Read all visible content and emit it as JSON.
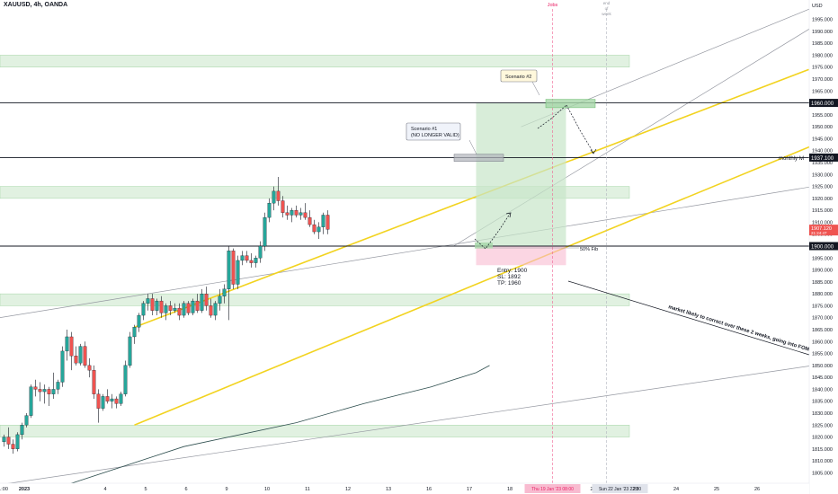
{
  "header": {
    "symbol_info": "XAUUSD, 4h, OANDA",
    "currency": "USD"
  },
  "chart_data": {
    "type": "candlestick",
    "y_axis": {
      "range": [
        1800,
        2000
      ],
      "ticks": [
        1805,
        1810,
        1815,
        1820,
        1825,
        1830,
        1835,
        1840,
        1845,
        1850,
        1855,
        1860,
        1865,
        1870,
        1875,
        1880,
        1885,
        1890,
        1895,
        1900,
        1905,
        1910,
        1915,
        1920,
        1925,
        1930,
        1935,
        1940,
        1945,
        1950,
        1955,
        1960,
        1965,
        1970,
        1975,
        1980,
        1985,
        1990,
        1995
      ],
      "tick_labels": [
        "1805.000",
        "1810.000",
        "1815.000",
        "1820.000",
        "1825.000",
        "1830.000",
        "1835.000",
        "1840.000",
        "1845.000",
        "1850.000",
        "1855.000",
        "1860.000",
        "1865.000",
        "1870.000",
        "1875.000",
        "1880.000",
        "1885.000",
        "1890.000",
        "1895.000",
        "1900.000",
        "1905.000",
        "1910.000",
        "1915.000",
        "1920.000",
        "1925.000",
        "1930.000",
        "1935.000",
        "1940.000",
        "1945.000",
        "1950.000",
        "1955.000",
        "1960.000",
        "1965.000",
        "1970.000",
        "1975.000",
        "1980.000",
        "1985.000",
        "1990.000",
        "1995.000"
      ]
    },
    "x_axis": {
      "labels": [
        "21:00",
        "2023",
        "4",
        "5",
        "6",
        "9",
        "10",
        "11",
        "12",
        "13",
        "16",
        "17",
        "18",
        "Thu 19 Jan '23 08:00",
        "20",
        "Sun 22 Jan '23 22:00",
        "23",
        "24",
        "25",
        "26"
      ],
      "label_index": [
        -0.5,
        4.5,
        22.5,
        31.5,
        40.5,
        49.5,
        58.5,
        67.5,
        76.5,
        85.5,
        94.5,
        103.5,
        112.5,
        122,
        131,
        137,
        140.5,
        149.5,
        158.5,
        167.5
      ],
      "highlighted_labels": [
        "Thu 19 Jan '23 08:00",
        "Sun 22 Jan '23 22:00"
      ]
    },
    "candles": [
      [
        1818,
        1821,
        1816,
        1820
      ],
      [
        1820,
        1824,
        1815,
        1817
      ],
      [
        1817,
        1819,
        1813,
        1815
      ],
      [
        1815,
        1822,
        1814,
        1821
      ],
      [
        1821,
        1826,
        1819,
        1825
      ],
      [
        1825,
        1830,
        1824,
        1829
      ],
      [
        1829,
        1842,
        1828,
        1841
      ],
      [
        1841,
        1844,
        1837,
        1840
      ],
      [
        1840,
        1843,
        1835,
        1839
      ],
      [
        1839,
        1842,
        1834,
        1840
      ],
      [
        1840,
        1841,
        1833,
        1838
      ],
      [
        1838,
        1847,
        1836,
        1840
      ],
      [
        1840,
        1844,
        1838,
        1843
      ],
      [
        1843,
        1858,
        1841,
        1856
      ],
      [
        1856,
        1865,
        1852,
        1862
      ],
      [
        1862,
        1864,
        1848,
        1854
      ],
      [
        1854,
        1858,
        1850,
        1851
      ],
      [
        1851,
        1859,
        1850,
        1858
      ],
      [
        1858,
        1860,
        1849,
        1850
      ],
      [
        1850,
        1853,
        1845,
        1848
      ],
      [
        1848,
        1850,
        1836,
        1838
      ],
      [
        1838,
        1840,
        1826,
        1832
      ],
      [
        1832,
        1838,
        1831,
        1837
      ],
      [
        1837,
        1840,
        1834,
        1835
      ],
      [
        1835,
        1838,
        1832,
        1836
      ],
      [
        1836,
        1837,
        1832,
        1834
      ],
      [
        1834,
        1839,
        1833,
        1838
      ],
      [
        1838,
        1852,
        1837,
        1850
      ],
      [
        1850,
        1864,
        1849,
        1862
      ],
      [
        1862,
        1867,
        1859,
        1866
      ],
      [
        1866,
        1872,
        1864,
        1871
      ],
      [
        1871,
        1877,
        1869,
        1876
      ],
      [
        1876,
        1880,
        1873,
        1878
      ],
      [
        1878,
        1880,
        1871,
        1873
      ],
      [
        1873,
        1878,
        1871,
        1877
      ],
      [
        1877,
        1879,
        1870,
        1872
      ],
      [
        1872,
        1876,
        1869,
        1875
      ],
      [
        1875,
        1877,
        1871,
        1873
      ],
      [
        1873,
        1876,
        1872,
        1874
      ],
      [
        1874,
        1876,
        1869,
        1871
      ],
      [
        1871,
        1877,
        1870,
        1876
      ],
      [
        1876,
        1877,
        1871,
        1872
      ],
      [
        1872,
        1878,
        1871,
        1877
      ],
      [
        1877,
        1880,
        1872,
        1873
      ],
      [
        1873,
        1882,
        1872,
        1880
      ],
      [
        1880,
        1883,
        1873,
        1875
      ],
      [
        1875,
        1878,
        1870,
        1871
      ],
      [
        1871,
        1877,
        1869,
        1876
      ],
      [
        1876,
        1882,
        1873,
        1879
      ],
      [
        1879,
        1884,
        1876,
        1882
      ],
      [
        1882,
        1900,
        1869,
        1898
      ],
      [
        1898,
        1899,
        1882,
        1884
      ],
      [
        1884,
        1896,
        1882,
        1894
      ],
      [
        1894,
        1898,
        1892,
        1896
      ],
      [
        1896,
        1898,
        1893,
        1894
      ],
      [
        1894,
        1897,
        1891,
        1893
      ],
      [
        1893,
        1896,
        1891,
        1895
      ],
      [
        1895,
        1902,
        1893,
        1900
      ],
      [
        1900,
        1914,
        1898,
        1912
      ],
      [
        1912,
        1920,
        1910,
        1918
      ],
      [
        1918,
        1925,
        1915,
        1923
      ],
      [
        1923,
        1929,
        1917,
        1919
      ],
      [
        1919,
        1921,
        1912,
        1914
      ],
      [
        1914,
        1917,
        1911,
        1913
      ],
      [
        1913,
        1916,
        1910,
        1915
      ],
      [
        1915,
        1917,
        1912,
        1913
      ],
      [
        1913,
        1916,
        1911,
        1914
      ],
      [
        1914,
        1918,
        1911,
        1912
      ],
      [
        1912,
        1915,
        1908,
        1909
      ],
      [
        1909,
        1911,
        1905,
        1906
      ],
      [
        1906,
        1910,
        1903,
        1908
      ],
      [
        1908,
        1914,
        1905,
        1913
      ],
      [
        1913,
        1915,
        1905,
        1907
      ]
    ],
    "horizontal_levels": [
      {
        "price": 1960,
        "tag": "1960.000",
        "label": ""
      },
      {
        "price": 1937.1,
        "tag": "1937.100",
        "label": "monthly lvl"
      },
      {
        "price": 1900,
        "tag": "1900.000",
        "label": ""
      }
    ],
    "current_price": {
      "price": 1907.1,
      "tag": "1907.120",
      "sub": "21:24:47"
    },
    "zones": [
      {
        "from": 1975,
        "to": 1980
      },
      {
        "from": 1920,
        "to": 1925
      },
      {
        "from": 1875,
        "to": 1880
      },
      {
        "from": 1820,
        "to": 1825
      }
    ],
    "channel": {
      "lower": [
        [
          29,
          1825
        ],
        [
          190,
          1950
        ]
      ],
      "upper": [
        [
          29,
          1866
        ],
        [
          179,
          1974
        ]
      ]
    },
    "trade": {
      "entry": 1900,
      "stop_loss": 1892,
      "take_profit": 1960
    },
    "vertical_markers": [
      {
        "x_index": 122,
        "label": "Jobs"
      },
      {
        "x_index": 134,
        "label": "end of week"
      }
    ],
    "annotations": {
      "scenario2": "Scenario #2",
      "scenario1_line1": "Scenario #1",
      "scenario1_line2": "(NO LONGER VALID)",
      "fib": "50% Fib",
      "entry": "Entry: 1900",
      "sl": "SL: 1892",
      "tp": "TP: 1960",
      "market_note": "market likely to correct over these 2 weeks, going into FOMC"
    }
  }
}
